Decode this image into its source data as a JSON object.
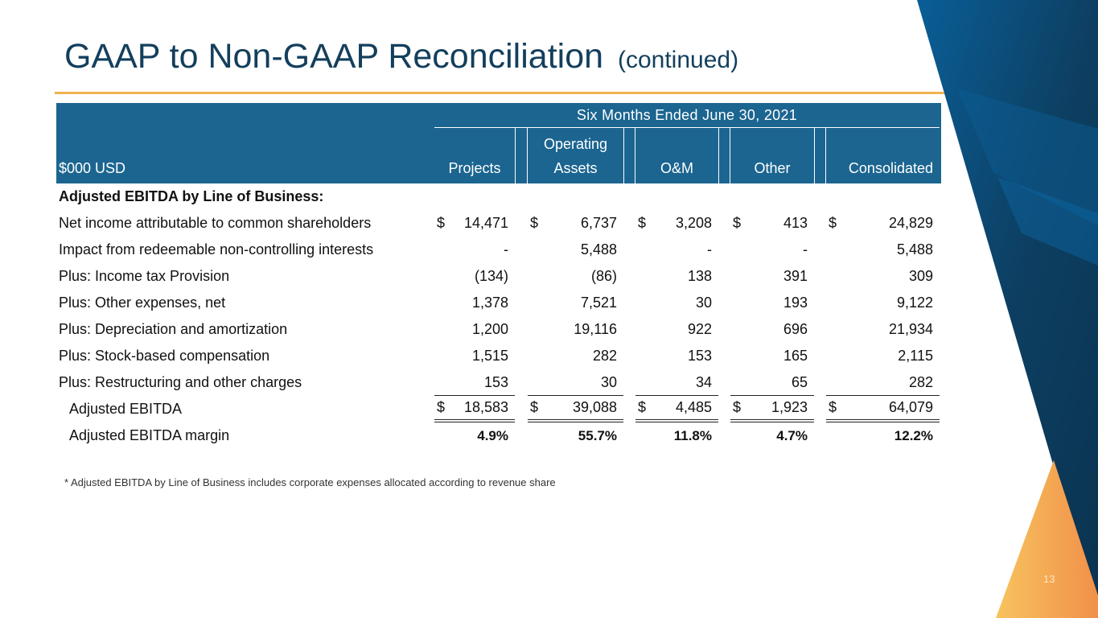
{
  "title": "GAAP to Non-GAAP Reconciliation",
  "title_suffix": "(continued)",
  "table": {
    "period": "Six Months Ended June 30, 2021",
    "unit_label": "$000 USD",
    "columns": [
      "Projects",
      "Operating Assets",
      "O&M",
      "Other",
      "Consolidated"
    ],
    "section_label": "Adjusted EBITDA by Line of Business:",
    "rows": [
      {
        "label": "Net income attributable to common shareholders",
        "dollar": true,
        "values": [
          "14,471",
          "6,737",
          "3,208",
          "413",
          "24,829"
        ]
      },
      {
        "label": "Impact from redeemable non-controlling interests",
        "values": [
          "-",
          "5,488",
          "-",
          "-",
          "5,488"
        ]
      },
      {
        "label": "Plus: Income tax Provision",
        "values": [
          "(134)",
          "(86)",
          "138",
          "391",
          "309"
        ]
      },
      {
        "label": "Plus: Other expenses, net",
        "values": [
          "1,378",
          "7,521",
          "30",
          "193",
          "9,122"
        ]
      },
      {
        "label": "Plus: Depreciation and amortization",
        "values": [
          "1,200",
          "19,116",
          "922",
          "696",
          "21,934"
        ]
      },
      {
        "label": "Plus: Stock-based compensation",
        "values": [
          "1,515",
          "282",
          "153",
          "165",
          "2,115"
        ]
      },
      {
        "label": "Plus: Restructuring and other charges",
        "values": [
          "153",
          "30",
          "34",
          "65",
          "282"
        ]
      },
      {
        "label": "Adjusted EBITDA",
        "dollar": true,
        "total": true,
        "values": [
          "18,583",
          "39,088",
          "4,485",
          "1,923",
          "64,079"
        ]
      },
      {
        "label": "Adjusted EBITDA margin",
        "pct": true,
        "values": [
          "4.9%",
          "55.7%",
          "11.8%",
          "4.7%",
          "12.2%"
        ]
      }
    ],
    "currency_symbol": "$"
  },
  "footnote": "* Adjusted EBITDA by Line of Business includes corporate expenses allocated according to revenue share",
  "page_number": "13",
  "colors": {
    "title": "#133f5c",
    "header_bg": "#1b6590",
    "accent_orange": "#f0b24e",
    "deco_blue": "#0d4a73"
  }
}
